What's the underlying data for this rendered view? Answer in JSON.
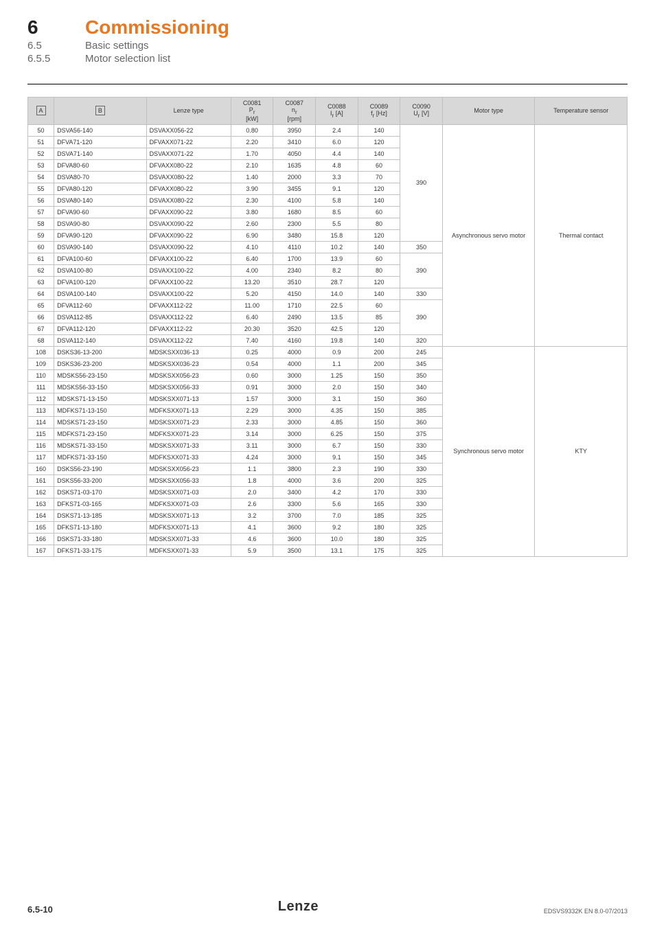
{
  "heading": {
    "chapter_num": "6",
    "chapter_title": "Commissioning",
    "sub_num": "6.5",
    "sub_title": "Basic settings",
    "subsub_num": "6.5.5",
    "subsub_title": "Motor selection list"
  },
  "table": {
    "headers": {
      "a": "A",
      "b": "B",
      "lenze": "Lenze type",
      "c0081_code": "C0081",
      "c0081_sym": "P",
      "c0081_sub": "r",
      "c0081_unit": "[kW]",
      "c0087_code": "C0087",
      "c0087_sym": "n",
      "c0087_sub": "r",
      "c0087_unit": "[rpm]",
      "c0088_code": "C0088",
      "c0088_sym": "I",
      "c0088_sub": "r",
      "c0088_unit": " [A]",
      "c0089_code": "C0089",
      "c0089_sym": "f",
      "c0089_sub": "r",
      "c0089_unit": " [Hz]",
      "c0090_code": "C0090",
      "c0090_sym": "U",
      "c0090_sub": "r",
      "c0090_unit": " [V]",
      "motor_type": "Motor type",
      "temp_sensor": "Temperature sensor"
    },
    "groups": [
      {
        "motor_type": "Asynchronous servo motor",
        "temp_sensor": "Thermal contact",
        "blocks": [
          {
            "c0090": "390",
            "rows": [
              {
                "a": "50",
                "b": "DSVA56-140",
                "lenze": "DSVAXX056-22",
                "c81": "0.80",
                "c87": "3950",
                "c88": "2.4",
                "c89": "140"
              },
              {
                "a": "51",
                "b": "DFVA71-120",
                "lenze": "DFVAXX071-22",
                "c81": "2.20",
                "c87": "3410",
                "c88": "6.0",
                "c89": "120"
              },
              {
                "a": "52",
                "b": "DSVA71-140",
                "lenze": "DSVAXX071-22",
                "c81": "1.70",
                "c87": "4050",
                "c88": "4.4",
                "c89": "140"
              },
              {
                "a": "53",
                "b": "DFVA80-60",
                "lenze": "DFVAXX080-22",
                "c81": "2.10",
                "c87": "1635",
                "c88": "4.8",
                "c89": "60"
              },
              {
                "a": "54",
                "b": "DSVA80-70",
                "lenze": "DSVAXX080-22",
                "c81": "1.40",
                "c87": "2000",
                "c88": "3.3",
                "c89": "70"
              },
              {
                "a": "55",
                "b": "DFVA80-120",
                "lenze": "DFVAXX080-22",
                "c81": "3.90",
                "c87": "3455",
                "c88": "9.1",
                "c89": "120"
              },
              {
                "a": "56",
                "b": "DSVA80-140",
                "lenze": "DSVAXX080-22",
                "c81": "2.30",
                "c87": "4100",
                "c88": "5.8",
                "c89": "140"
              },
              {
                "a": "57",
                "b": "DFVA90-60",
                "lenze": "DFVAXX090-22",
                "c81": "3.80",
                "c87": "1680",
                "c88": "8.5",
                "c89": "60"
              },
              {
                "a": "58",
                "b": "DSVA90-80",
                "lenze": "DSVAXX090-22",
                "c81": "2.60",
                "c87": "2300",
                "c88": "5.5",
                "c89": "80"
              },
              {
                "a": "59",
                "b": "DFVA90-120",
                "lenze": "DFVAXX090-22",
                "c81": "6.90",
                "c87": "3480",
                "c88": "15.8",
                "c89": "120"
              }
            ]
          },
          {
            "c0090": "350",
            "rows": [
              {
                "a": "60",
                "b": "DSVA90-140",
                "lenze": "DSVAXX090-22",
                "c81": "4.10",
                "c87": "4110",
                "c88": "10.2",
                "c89": "140"
              }
            ]
          },
          {
            "c0090": "390",
            "rows": [
              {
                "a": "61",
                "b": "DFVA100-60",
                "lenze": "DFVAXX100-22",
                "c81": "6.40",
                "c87": "1700",
                "c88": "13.9",
                "c89": "60"
              },
              {
                "a": "62",
                "b": "DSVA100-80",
                "lenze": "DSVAXX100-22",
                "c81": "4.00",
                "c87": "2340",
                "c88": "8.2",
                "c89": "80"
              },
              {
                "a": "63",
                "b": "DFVA100-120",
                "lenze": "DFVAXX100-22",
                "c81": "13.20",
                "c87": "3510",
                "c88": "28.7",
                "c89": "120"
              }
            ]
          },
          {
            "c0090": "330",
            "rows": [
              {
                "a": "64",
                "b": "DSVA100-140",
                "lenze": "DSVAXX100-22",
                "c81": "5.20",
                "c87": "4150",
                "c88": "14.0",
                "c89": "140"
              }
            ]
          },
          {
            "c0090": "390",
            "rows": [
              {
                "a": "65",
                "b": "DFVA112-60",
                "lenze": "DFVAXX112-22",
                "c81": "11.00",
                "c87": "1710",
                "c88": "22.5",
                "c89": "60"
              },
              {
                "a": "66",
                "b": "DSVA112-85",
                "lenze": "DSVAXX112-22",
                "c81": "6.40",
                "c87": "2490",
                "c88": "13.5",
                "c89": "85"
              },
              {
                "a": "67",
                "b": "DFVA112-120",
                "lenze": "DFVAXX112-22",
                "c81": "20.30",
                "c87": "3520",
                "c88": "42.5",
                "c89": "120"
              }
            ]
          },
          {
            "c0090": "320",
            "rows": [
              {
                "a": "68",
                "b": "DSVA112-140",
                "lenze": "DSVAXX112-22",
                "c81": "7.40",
                "c87": "4160",
                "c88": "19.8",
                "c89": "140"
              }
            ]
          }
        ]
      },
      {
        "motor_type": "Synchronous servo motor",
        "temp_sensor": "KTY",
        "blocks": [
          {
            "c0090": "245",
            "rows": [
              {
                "a": "108",
                "b": "DSKS36-13-200",
                "lenze": "MDSKSXX036-13",
                "c81": "0.25",
                "c87": "4000",
                "c88": "0.9",
                "c89": "200"
              }
            ]
          },
          {
            "c0090": "345",
            "rows": [
              {
                "a": "109",
                "b": "DSKS36-23-200",
                "lenze": "MDSKSXX036-23",
                "c81": "0.54",
                "c87": "4000",
                "c88": "1.1",
                "c89": "200"
              }
            ]
          },
          {
            "c0090": "350",
            "rows": [
              {
                "a": "110",
                "b": "MDSKS56-23-150",
                "lenze": "MDSKSXX056-23",
                "c81": "0.60",
                "c87": "3000",
                "c88": "1.25",
                "c89": "150"
              }
            ]
          },
          {
            "c0090": "340",
            "rows": [
              {
                "a": "111",
                "b": "MDSKS56-33-150",
                "lenze": "MDSKSXX056-33",
                "c81": "0.91",
                "c87": "3000",
                "c88": "2.0",
                "c89": "150"
              }
            ]
          },
          {
            "c0090": "360",
            "rows": [
              {
                "a": "112",
                "b": "MDSKS71-13-150",
                "lenze": "MDSKSXX071-13",
                "c81": "1.57",
                "c87": "3000",
                "c88": "3.1",
                "c89": "150"
              }
            ]
          },
          {
            "c0090": "385",
            "rows": [
              {
                "a": "113",
                "b": "MDFKS71-13-150",
                "lenze": "MDFKSXX071-13",
                "c81": "2.29",
                "c87": "3000",
                "c88": "4.35",
                "c89": "150"
              }
            ]
          },
          {
            "c0090": "360",
            "rows": [
              {
                "a": "114",
                "b": "MDSKS71-23-150",
                "lenze": "MDSKSXX071-23",
                "c81": "2.33",
                "c87": "3000",
                "c88": "4.85",
                "c89": "150"
              }
            ]
          },
          {
            "c0090": "375",
            "rows": [
              {
                "a": "115",
                "b": "MDFKS71-23-150",
                "lenze": "MDFKSXX071-23",
                "c81": "3.14",
                "c87": "3000",
                "c88": "6.25",
                "c89": "150"
              }
            ]
          },
          {
            "c0090": "330",
            "rows": [
              {
                "a": "116",
                "b": "MDSKS71-33-150",
                "lenze": "MDSKSXX071-33",
                "c81": "3.11",
                "c87": "3000",
                "c88": "6.7",
                "c89": "150"
              }
            ]
          },
          {
            "c0090": "345",
            "rows": [
              {
                "a": "117",
                "b": "MDFKS71-33-150",
                "lenze": "MDFKSXX071-33",
                "c81": "4.24",
                "c87": "3000",
                "c88": "9.1",
                "c89": "150"
              }
            ]
          },
          {
            "c0090": "330",
            "rows": [
              {
                "a": "160",
                "b": "DSKS56-23-190",
                "lenze": "MDSKSXX056-23",
                "c81": "1.1",
                "c87": "3800",
                "c88": "2.3",
                "c89": "190"
              }
            ]
          },
          {
            "c0090": "325",
            "rows": [
              {
                "a": "161",
                "b": "DSKS56-33-200",
                "lenze": "MDSKSXX056-33",
                "c81": "1.8",
                "c87": "4000",
                "c88": "3.6",
                "c89": "200"
              }
            ]
          },
          {
            "c0090": "330",
            "rows": [
              {
                "a": "162",
                "b": "DSKS71-03-170",
                "lenze": "MDSKSXX071-03",
                "c81": "2.0",
                "c87": "3400",
                "c88": "4.2",
                "c89": "170"
              }
            ]
          },
          {
            "c0090": "330",
            "rows": [
              {
                "a": "163",
                "b": "DFKS71-03-165",
                "lenze": "MDFKSXX071-03",
                "c81": "2.6",
                "c87": "3300",
                "c88": "5.6",
                "c89": "165"
              }
            ]
          },
          {
            "c0090": "325",
            "rows": [
              {
                "a": "164",
                "b": "DSKS71-13-185",
                "lenze": "MDSKSXX071-13",
                "c81": "3.2",
                "c87": "3700",
                "c88": "7.0",
                "c89": "185"
              }
            ]
          },
          {
            "c0090": "325",
            "rows": [
              {
                "a": "165",
                "b": "DFKS71-13-180",
                "lenze": "MDFKSXX071-13",
                "c81": "4.1",
                "c87": "3600",
                "c88": "9.2",
                "c89": "180"
              }
            ]
          },
          {
            "c0090": "325",
            "rows": [
              {
                "a": "166",
                "b": "DSKS71-33-180",
                "lenze": "MDSKSXX071-33",
                "c81": "4.6",
                "c87": "3600",
                "c88": "10.0",
                "c89": "180"
              }
            ]
          },
          {
            "c0090": "325",
            "rows": [
              {
                "a": "167",
                "b": "DFKS71-33-175",
                "lenze": "MDFKSXX071-33",
                "c81": "5.9",
                "c87": "3500",
                "c88": "13.1",
                "c89": "175"
              }
            ]
          }
        ]
      }
    ]
  },
  "footer": {
    "page_num": "6.5-10",
    "logo": "Lenze",
    "doc_id": "EDSVS9332K EN 8.0-07/2013"
  }
}
